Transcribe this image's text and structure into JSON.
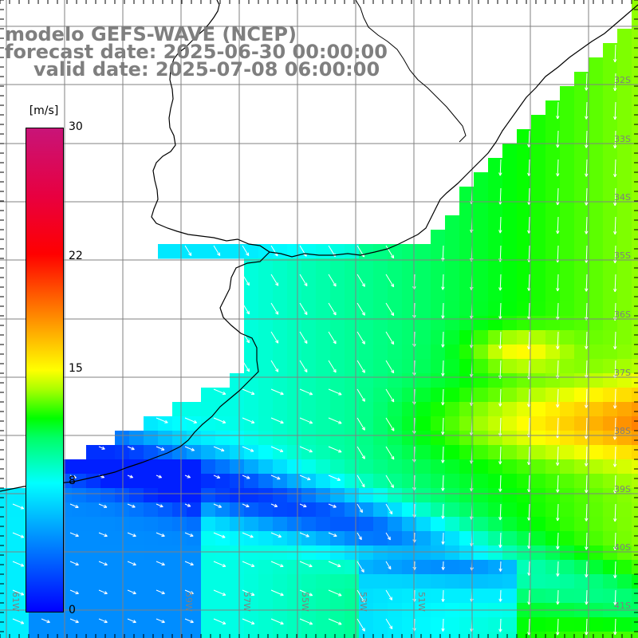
{
  "title": {
    "model": "modelo GEFS-WAVE (NCEP)",
    "forecast": "forecast date: 2025-06-30 00:00:00",
    "valid": "valid date: 2025-07-08 06:00:00"
  },
  "colorbar": {
    "units": "[m/s]",
    "ticks": [
      {
        "value": 30,
        "label": "30"
      },
      {
        "value": 22,
        "label": "22"
      },
      {
        "value": 15,
        "label": "15"
      },
      {
        "value": 8,
        "label": "8"
      },
      {
        "value": 0,
        "label": "0"
      }
    ],
    "range": [
      0,
      30
    ]
  },
  "map": {
    "variable": "wind speed",
    "lon_labels": [
      "61W",
      "59W",
      "57W",
      "55W",
      "53W",
      "51W"
    ],
    "lat_labels": [
      "32S",
      "33S",
      "34S",
      "35S",
      "36S",
      "37S",
      "38S",
      "39S",
      "40S",
      "41S"
    ],
    "colors": {
      "land": "#ffffff",
      "grid": "#808080",
      "coast": "#000000",
      "arrows": "#ffffff",
      "title": "#7f7f7f"
    }
  }
}
